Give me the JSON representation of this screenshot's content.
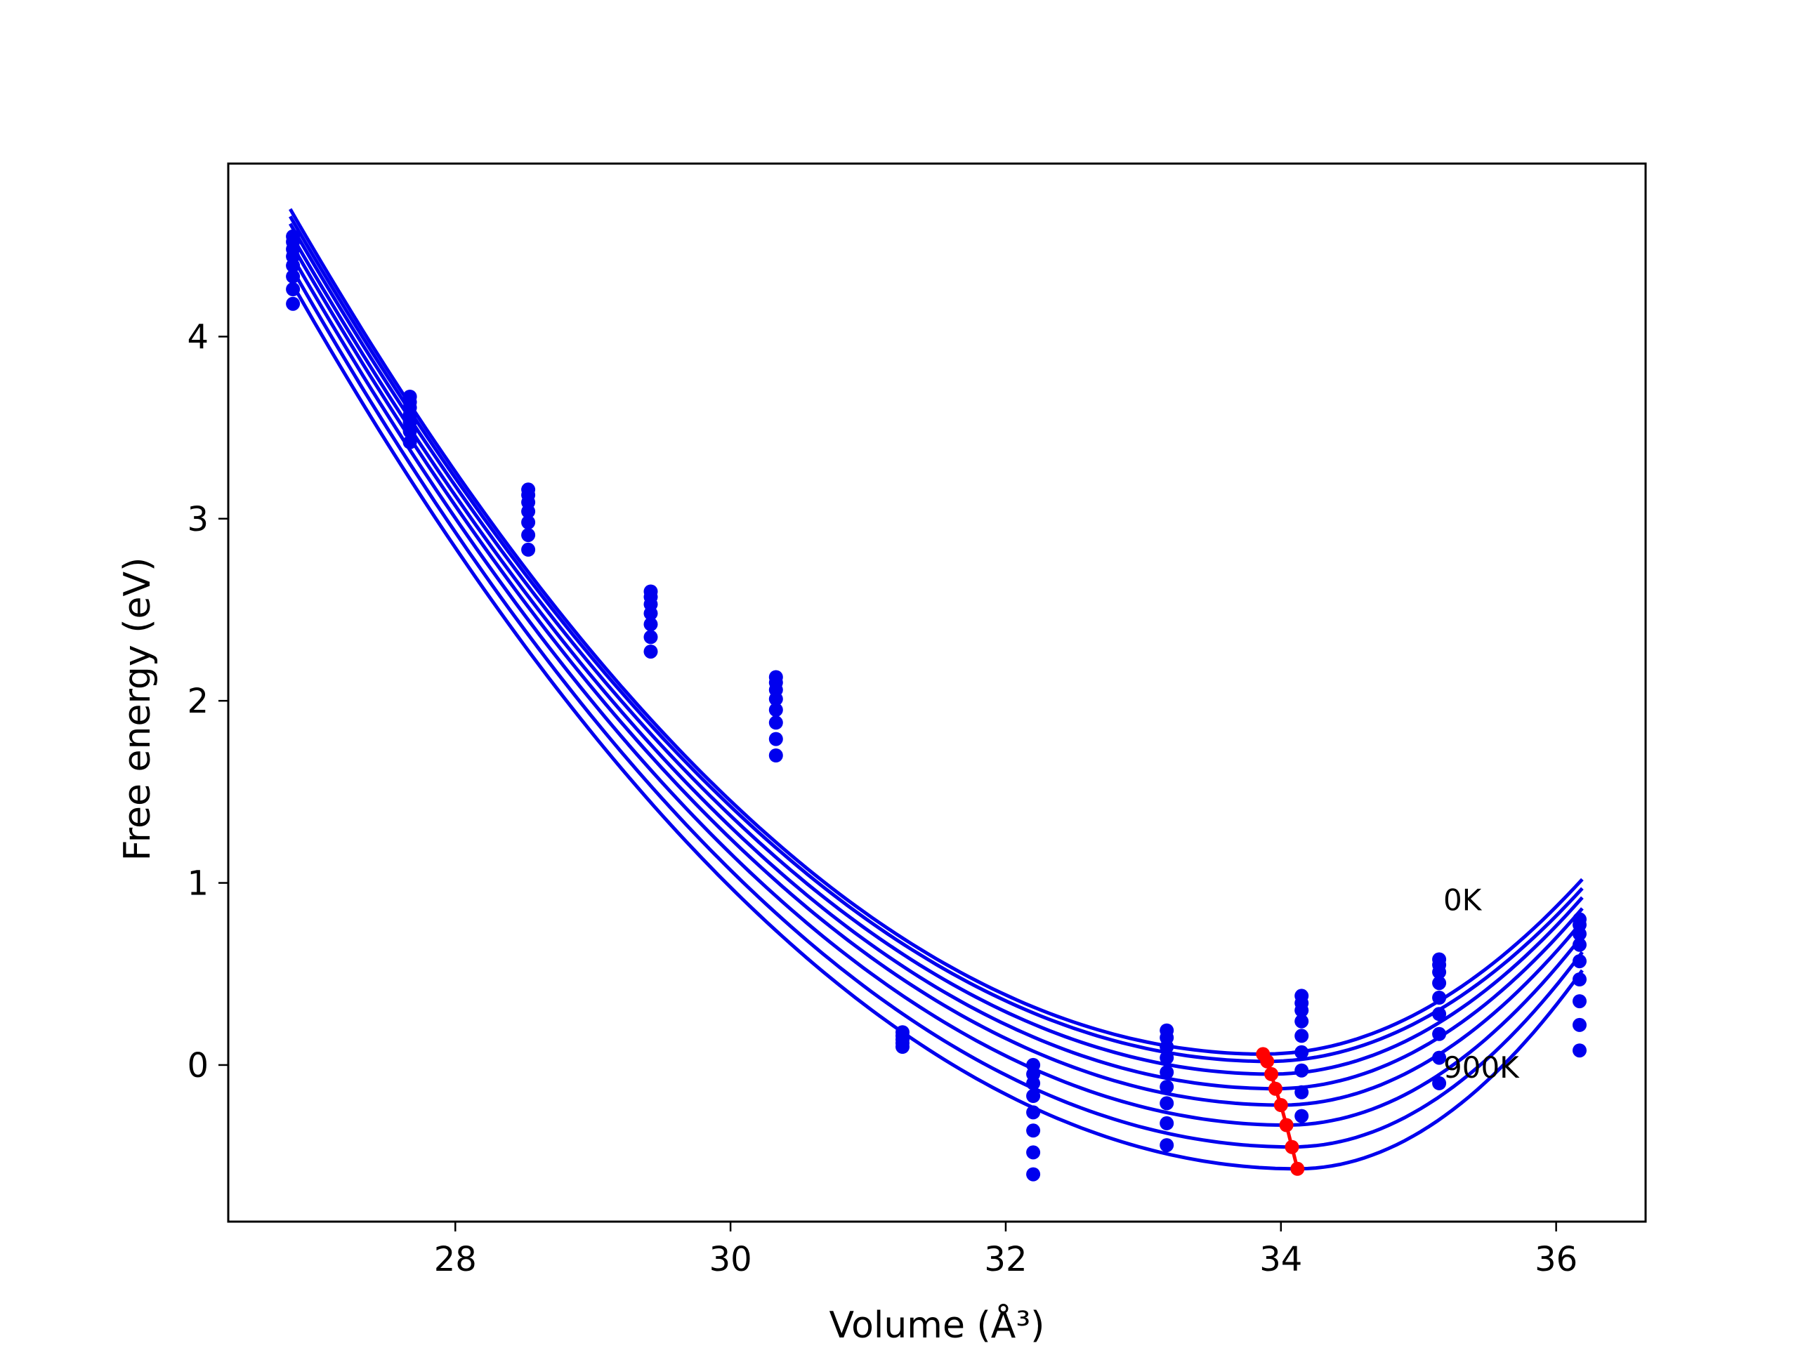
{
  "chart_data": {
    "type": "scatter",
    "xlabel": "Volume (Å³)",
    "ylabel": "Free energy (eV)",
    "xlim": [
      26.35,
      36.65
    ],
    "ylim": [
      -0.86,
      4.95
    ],
    "xticks": [
      28,
      30,
      32,
      34,
      36
    ],
    "yticks": [
      0,
      1,
      2,
      3,
      4
    ],
    "grid": false,
    "annotations": [
      {
        "text": "0K",
        "x": 35.18,
        "y": 0.85
      },
      {
        "text": "900K",
        "x": 35.18,
        "y": -0.07
      }
    ],
    "colors": {
      "curves": "#0000ee",
      "points": "#0000ee",
      "minima": "#ff0000"
    },
    "volumes": [
      26.82,
      27.67,
      28.53,
      29.42,
      30.33,
      31.25,
      32.2,
      33.17,
      34.15,
      35.15,
      36.17
    ],
    "series": [
      {
        "Vmin": 33.87,
        "Emin": 0.06,
        "E_at_left": 4.7,
        "E_at_right": 1.02
      },
      {
        "Vmin": 33.9,
        "Emin": 0.02,
        "E_at_left": 4.66,
        "E_at_right": 0.97
      },
      {
        "Vmin": 33.93,
        "Emin": -0.05,
        "E_at_left": 4.62,
        "E_at_right": 0.92
      },
      {
        "Vmin": 33.96,
        "Emin": -0.13,
        "E_at_left": 4.57,
        "E_at_right": 0.86
      },
      {
        "Vmin": 34.0,
        "Emin": -0.22,
        "E_at_left": 4.52,
        "E_at_right": 0.79
      },
      {
        "Vmin": 34.04,
        "Emin": -0.33,
        "E_at_left": 4.46,
        "E_at_right": 0.71
      },
      {
        "Vmin": 34.08,
        "Emin": -0.45,
        "E_at_left": 4.39,
        "E_at_right": 0.62
      },
      {
        "Vmin": 34.12,
        "Emin": -0.57,
        "E_at_left": 4.31,
        "E_at_right": 0.52
      }
    ],
    "points": [
      {
        "x": 26.82,
        "y": [
          4.55,
          4.52,
          4.48,
          4.44,
          4.39,
          4.33,
          4.26,
          4.18
        ]
      },
      {
        "x": 27.67,
        "y": [
          3.67,
          3.64,
          3.61,
          3.57,
          3.53,
          3.48,
          3.42
        ]
      },
      {
        "x": 28.53,
        "y": [
          3.16,
          3.13,
          3.09,
          3.04,
          2.98,
          2.91,
          2.83
        ]
      },
      {
        "x": 29.42,
        "y": [
          2.6,
          2.57,
          2.53,
          2.48,
          2.42,
          2.35,
          2.27
        ]
      },
      {
        "x": 30.33,
        "y": [
          2.13,
          2.1,
          2.06,
          2.01,
          1.95,
          1.88,
          1.79,
          1.7
        ]
      },
      {
        "x": 31.25,
        "y": [
          0.18,
          0.16,
          0.14,
          0.12,
          0.1
        ]
      },
      {
        "x": 32.2,
        "y": [
          0.0,
          -0.05,
          -0.1,
          -0.17,
          -0.26,
          -0.36,
          -0.48,
          -0.6
        ]
      },
      {
        "x": 33.17,
        "y": [
          0.19,
          0.15,
          0.1,
          0.04,
          -0.04,
          -0.12,
          -0.21,
          -0.32,
          -0.44
        ]
      },
      {
        "x": 34.15,
        "y": [
          0.38,
          0.34,
          0.3,
          0.24,
          0.16,
          0.07,
          -0.03,
          -0.15,
          -0.28
        ]
      },
      {
        "x": 35.15,
        "y": [
          0.58,
          0.55,
          0.51,
          0.45,
          0.37,
          0.28,
          0.17,
          0.04,
          -0.1
        ]
      },
      {
        "x": 36.17,
        "y": [
          0.8,
          0.77,
          0.72,
          0.66,
          0.57,
          0.47,
          0.35,
          0.22,
          0.08
        ]
      }
    ]
  }
}
